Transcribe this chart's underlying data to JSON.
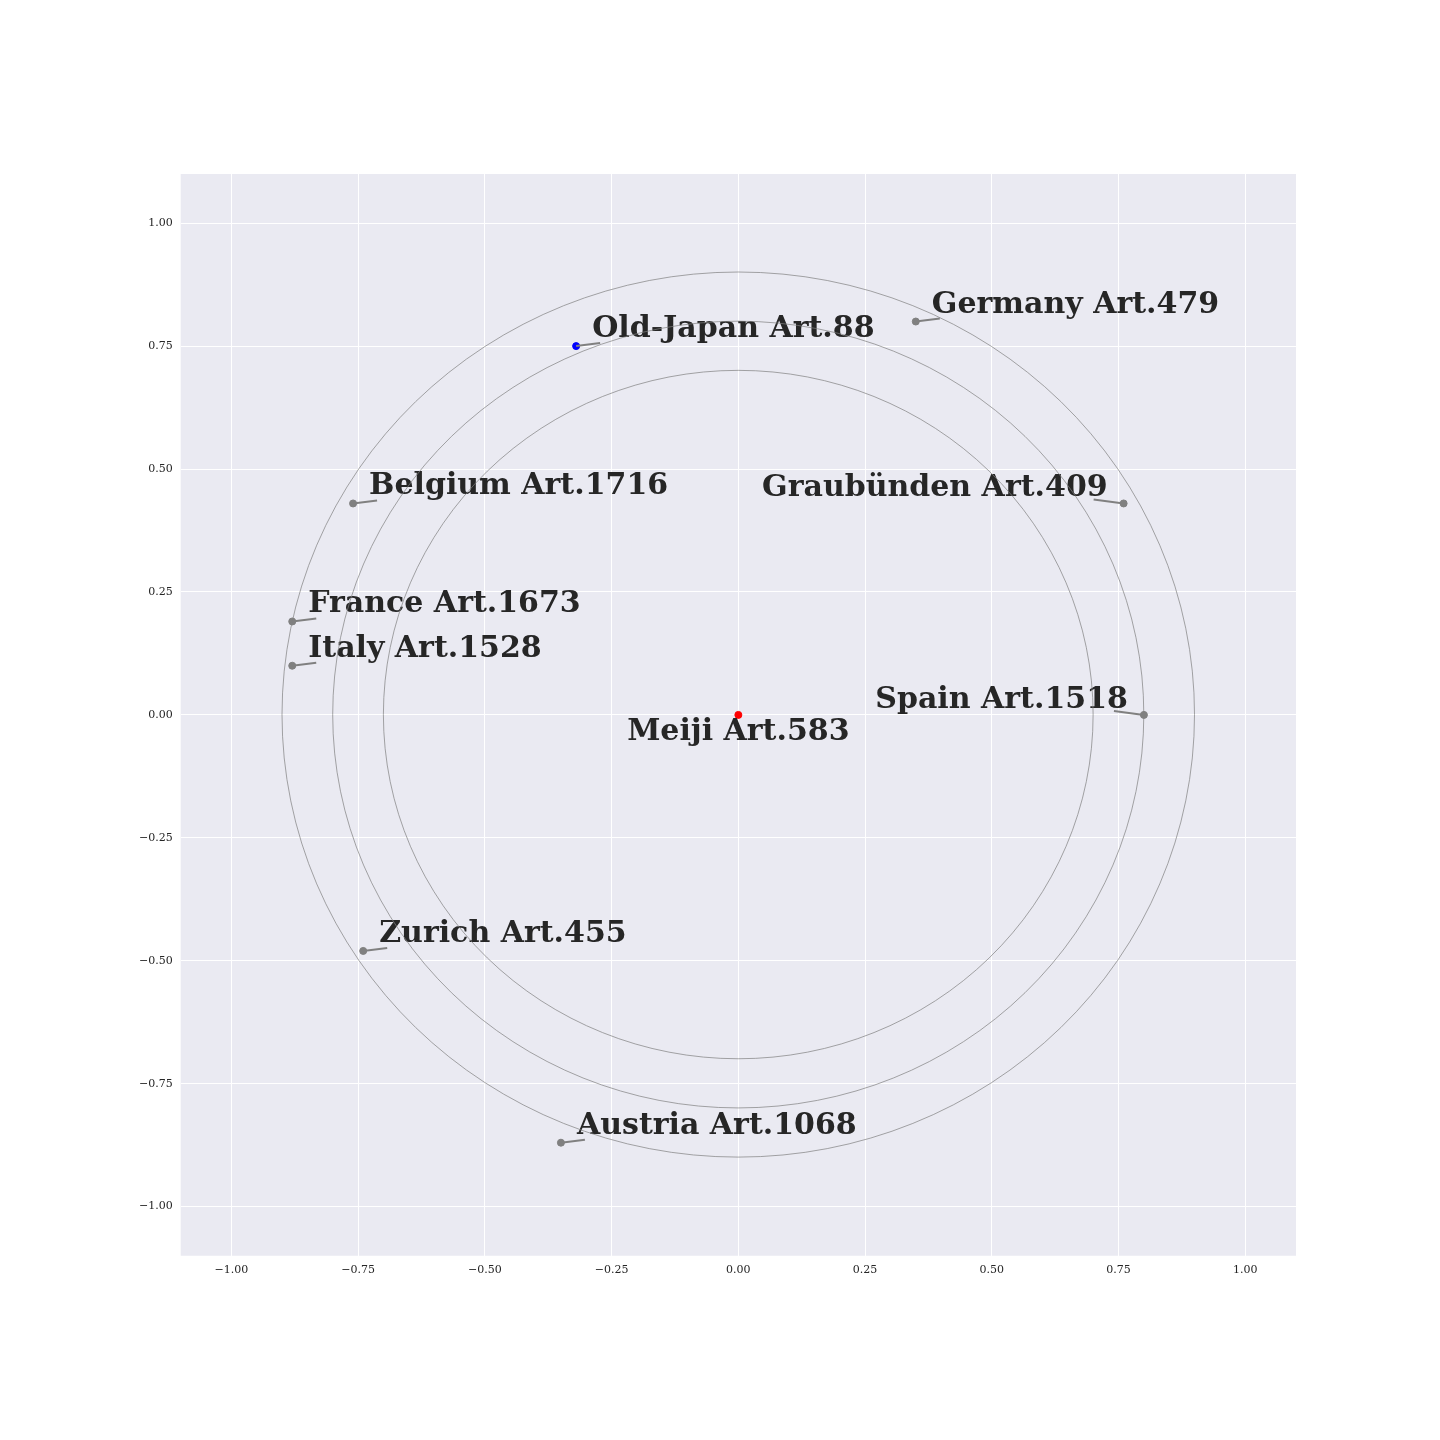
{
  "chart_data": {
    "type": "scatter",
    "xlim": [
      -1.1,
      1.1
    ],
    "ylim": [
      -1.1,
      1.1
    ],
    "xticks": [
      {
        "value": -1,
        "label": "−1.00"
      },
      {
        "value": -0.75,
        "label": "−0.75"
      },
      {
        "value": -0.5,
        "label": "−0.50"
      },
      {
        "value": -0.25,
        "label": "−0.25"
      },
      {
        "value": 0,
        "label": "0.00"
      },
      {
        "value": 0.25,
        "label": "0.25"
      },
      {
        "value": 0.5,
        "label": "0.50"
      },
      {
        "value": 0.75,
        "label": "0.75"
      },
      {
        "value": 1,
        "label": "1.00"
      }
    ],
    "yticks": [
      {
        "value": -1,
        "label": "−1.00"
      },
      {
        "value": -0.75,
        "label": "−0.75"
      },
      {
        "value": -0.5,
        "label": "−0.50"
      },
      {
        "value": -0.25,
        "label": "−0.25"
      },
      {
        "value": 0,
        "label": "0.00"
      },
      {
        "value": 0.25,
        "label": "0.25"
      },
      {
        "value": 0.5,
        "label": "0.50"
      },
      {
        "value": 0.75,
        "label": "0.75"
      },
      {
        "value": 1,
        "label": "1.00"
      }
    ],
    "grid": true,
    "legend": false,
    "marker": "circle",
    "series": [
      {
        "color": "#808080",
        "x": [
          0.35,
          -0.76,
          0.76,
          -0.88,
          -0.88,
          0.8,
          -0.74,
          -0.35
        ],
        "values": [
          0.8,
          0.43,
          0.43,
          0.19,
          0.1,
          0,
          -0.48,
          -0.87
        ]
      },
      {
        "color": "#0000ff",
        "x": [
          -0.32
        ],
        "values": [
          0.75
        ]
      },
      {
        "color": "#ff0000",
        "x": [
          0
        ],
        "values": [
          0
        ]
      }
    ],
    "annotations": [
      {
        "text": "Old-Japan Art.88",
        "x": -0.32,
        "y": 0.75
      },
      {
        "text": "Germany Art.479",
        "x": 0.35,
        "y": 0.8
      },
      {
        "text": "Belgium Art.1716",
        "x": -0.76,
        "y": 0.43
      },
      {
        "text": "Graubünden Art.409",
        "x": 0.76,
        "y": 0.43
      },
      {
        "text": "France Art.1673",
        "x": -0.88,
        "y": 0.19
      },
      {
        "text": "Italy Art.1528",
        "x": -0.88,
        "y": 0.1
      },
      {
        "text": "Spain Art.1518",
        "x": 0.8,
        "y": 0
      },
      {
        "text": "Meiji Art.583",
        "x": 0,
        "y": 0
      },
      {
        "text": "Zurich Art.455",
        "x": -0.74,
        "y": -0.48
      },
      {
        "text": "Austria Art.1068",
        "x": -0.35,
        "y": -0.87
      }
    ]
  }
}
